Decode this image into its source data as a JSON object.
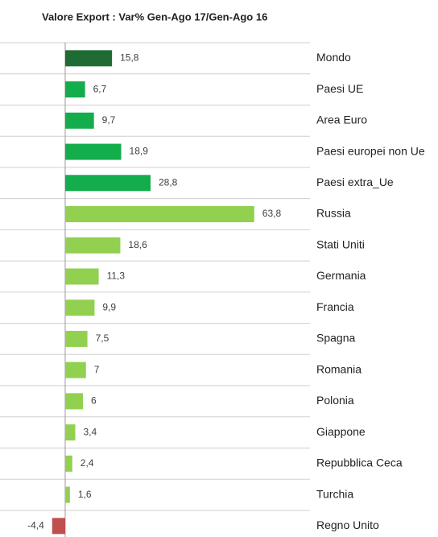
{
  "chart_data": {
    "type": "bar",
    "orientation": "horizontal",
    "title": "Valore Export : Var%  Gen-Ago 17/Gen-Ago 16",
    "categories": [
      "Mondo",
      "Paesi UE",
      "Area Euro",
      "Paesi europei non Ue",
      "Paesi extra_Ue",
      "Russia",
      "Stati Uniti",
      "Germania",
      "Francia",
      "Spagna",
      "Romania",
      "Polonia",
      "Giappone",
      "Repubblica Ceca",
      "Turchia",
      "Regno Unito"
    ],
    "values": [
      15.8,
      6.7,
      9.7,
      18.9,
      28.8,
      63.8,
      18.6,
      11.3,
      9.9,
      7.5,
      7,
      6,
      3.4,
      2.4,
      1.6,
      -4.4
    ],
    "value_labels": [
      "15,8",
      "6,7",
      "9,7",
      "18,9",
      "28,8",
      "63,8",
      "18,6",
      "11,3",
      "9,9",
      "7,5",
      "7",
      "6",
      "3,4",
      "2,4",
      "1,6",
      "-4,4"
    ],
    "colors": [
      "#1f6b34",
      "#13ad4c",
      "#13ad4c",
      "#13ad4c",
      "#13ad4c",
      "#92d050",
      "#92d050",
      "#92d050",
      "#92d050",
      "#92d050",
      "#92d050",
      "#92d050",
      "#92d050",
      "#92d050",
      "#92d050",
      "#c0504d"
    ],
    "xlim": [
      -22,
      82.6
    ]
  }
}
